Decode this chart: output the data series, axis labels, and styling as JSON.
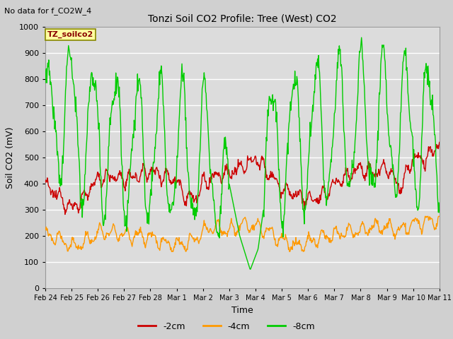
{
  "title": "Tonzi Soil CO2 Profile: Tree (West) CO2",
  "subtitle": "No data for f_CO2W_4",
  "xlabel": "Time",
  "ylabel": "Soil CO2 (mV)",
  "ylim": [
    0,
    1000
  ],
  "yticks": [
    0,
    100,
    200,
    300,
    400,
    500,
    600,
    700,
    800,
    900,
    1000
  ],
  "legend_label": "TZ_soilco2",
  "series_labels": [
    "-2cm",
    "-4cm",
    "-8cm"
  ],
  "series_colors": [
    "#cc0000",
    "#ff9900",
    "#00cc00"
  ],
  "bg_color": "#e8e8e8",
  "plot_bg_color": "#e0e0e0",
  "grid_color": "#ffffff",
  "x_tick_labels": [
    "Feb 24",
    "Feb 25",
    "Feb 26",
    "Feb 27",
    "Feb 28",
    "Mar 1",
    "Mar 2",
    "Mar 3",
    "Mar 4",
    "Mar 5",
    "Mar 6",
    "Mar 7",
    "Mar 8",
    "Mar 9",
    "Mar 10",
    "Mar 11"
  ],
  "n_points": 800
}
